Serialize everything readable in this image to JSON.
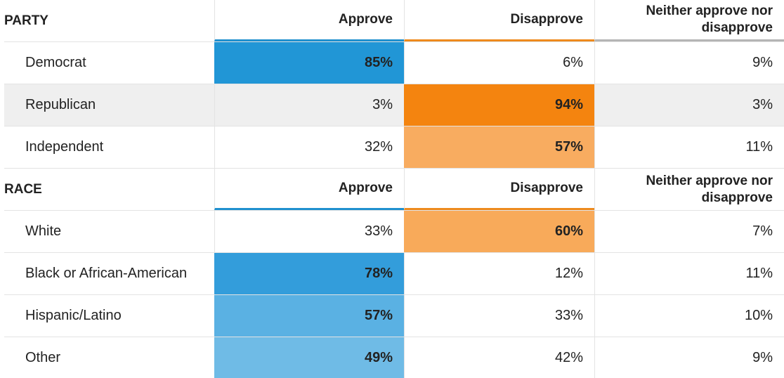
{
  "colors": {
    "approve_accent": "#2090cf",
    "disapprove_accent": "#ee8a1d",
    "neither_accent": "#b5b5b5",
    "shaded_row": "#efefef"
  },
  "chart_data": {
    "type": "table",
    "columns": [
      "Approve",
      "Disapprove",
      "Neither approve nor disapprove"
    ],
    "sections": [
      {
        "title": "PARTY",
        "rows": [
          {
            "label": "Democrat",
            "approve": "85%",
            "disapprove": "6%",
            "neither": "9%",
            "highlight": "approve",
            "fill": "#2196d6"
          },
          {
            "label": "Republican",
            "approve": "3%",
            "disapprove": "94%",
            "neither": "3%",
            "highlight": "disapprove",
            "fill": "#f4840f"
          },
          {
            "label": "Independent",
            "approve": "32%",
            "disapprove": "57%",
            "neither": "11%",
            "highlight": "disapprove",
            "fill": "#f8ac60"
          }
        ]
      },
      {
        "title": "RACE",
        "rows": [
          {
            "label": "White",
            "approve": "33%",
            "disapprove": "60%",
            "neither": "7%",
            "highlight": "disapprove",
            "fill": "#f8aa5a"
          },
          {
            "label": "Black or African-American",
            "approve": "78%",
            "disapprove": "12%",
            "neither": "11%",
            "highlight": "approve",
            "fill": "#339ddb"
          },
          {
            "label": "Hispanic/Latino",
            "approve": "57%",
            "disapprove": "33%",
            "neither": "10%",
            "highlight": "approve",
            "fill": "#5ab1e3"
          },
          {
            "label": "Other",
            "approve": "49%",
            "disapprove": "42%",
            "neither": "9%",
            "highlight": "approve",
            "fill": "#6fbbe6"
          }
        ]
      }
    ]
  }
}
